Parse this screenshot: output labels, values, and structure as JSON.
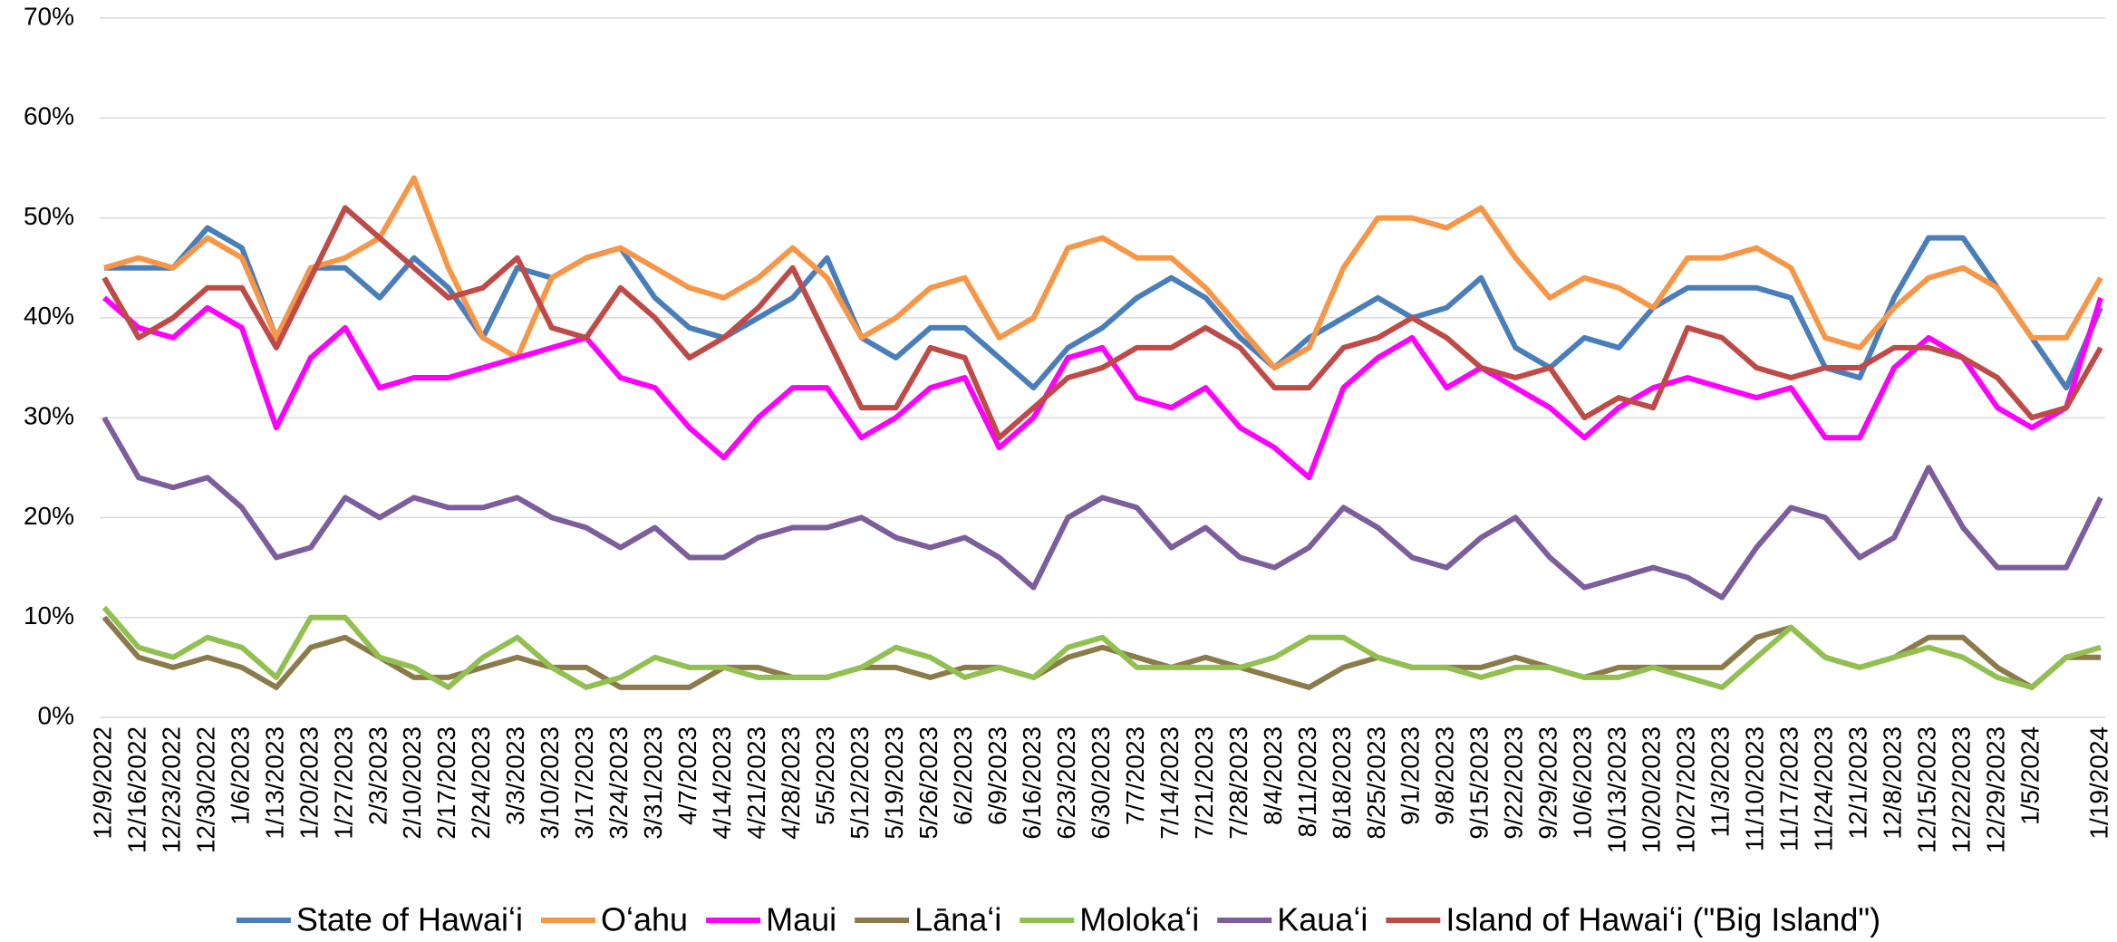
{
  "chart_data": {
    "type": "line",
    "categories": [
      "12/9/2022",
      "12/16/2022",
      "12/23/2022",
      "12/30/2022",
      "1/6/2023",
      "1/13/2023",
      "1/20/2023",
      "1/27/2023",
      "2/3/2023",
      "2/10/2023",
      "2/17/2023",
      "2/24/2023",
      "3/3/2023",
      "3/10/2023",
      "3/17/2023",
      "3/24/2023",
      "3/31/2023",
      "4/7/2023",
      "4/14/2023",
      "4/21/2023",
      "4/28/2023",
      "5/5/2023",
      "5/12/2023",
      "5/19/2023",
      "5/26/2023",
      "6/2/2023",
      "6/9/2023",
      "6/16/2023",
      "6/23/2023",
      "6/30/2023",
      "7/7/2023",
      "7/14/2023",
      "7/21/2023",
      "7/28/2023",
      "8/4/2023",
      "8/11/2023",
      "8/18/2023",
      "8/25/2023",
      "9/1/2023",
      "9/8/2023",
      "9/15/2023",
      "9/22/2023",
      "9/29/2023",
      "10/6/2023",
      "10/13/2023",
      "10/20/2023",
      "10/27/2023",
      "11/3/2023",
      "11/10/2023",
      "11/17/2023",
      "11/24/2023",
      "12/1/2023",
      "12/8/2023",
      "12/15/2023",
      "12/22/2023",
      "12/29/2023",
      "1/5/2024",
      null,
      "1/19/2024"
    ],
    "series": [
      {
        "name": "State of Hawaiʻi",
        "color": "#4a7ebb",
        "values": [
          45,
          45,
          45,
          49,
          47,
          38,
          45,
          45,
          42,
          46,
          43,
          38,
          45,
          44,
          46,
          47,
          42,
          39,
          38,
          40,
          42,
          46,
          38,
          36,
          39,
          39,
          36,
          33,
          37,
          39,
          42,
          44,
          42,
          38,
          35,
          38,
          40,
          42,
          40,
          41,
          44,
          37,
          35,
          38,
          37,
          41,
          43,
          43,
          43,
          42,
          35,
          34,
          42,
          48,
          48,
          43,
          38,
          33,
          41
        ]
      },
      {
        "name": "Oʻahu",
        "color": "#f79646",
        "values": [
          45,
          46,
          45,
          48,
          46,
          38,
          45,
          46,
          48,
          54,
          45,
          38,
          36,
          44,
          46,
          47,
          45,
          43,
          42,
          44,
          47,
          44,
          38,
          40,
          43,
          44,
          38,
          40,
          47,
          48,
          46,
          46,
          43,
          39,
          35,
          37,
          45,
          50,
          50,
          49,
          51,
          46,
          42,
          44,
          43,
          41,
          46,
          46,
          47,
          45,
          38,
          37,
          41,
          44,
          45,
          43,
          38,
          38,
          44
        ]
      },
      {
        "name": "Maui",
        "color": "#ff00ff",
        "values": [
          42,
          39,
          38,
          41,
          39,
          29,
          36,
          39,
          33,
          34,
          34,
          35,
          36,
          37,
          38,
          34,
          33,
          29,
          26,
          30,
          33,
          33,
          28,
          30,
          33,
          34,
          27,
          30,
          36,
          37,
          32,
          31,
          33,
          29,
          27,
          24,
          33,
          36,
          38,
          33,
          35,
          33,
          31,
          28,
          31,
          33,
          34,
          33,
          32,
          33,
          28,
          28,
          35,
          38,
          36,
          31,
          29,
          31,
          42
        ]
      },
      {
        "name": "Lānaʻi",
        "color": "#8c7b4a",
        "values": [
          10,
          6,
          5,
          6,
          5,
          3,
          7,
          8,
          6,
          4,
          4,
          5,
          6,
          5,
          5,
          3,
          3,
          3,
          5,
          5,
          4,
          4,
          5,
          5,
          4,
          5,
          5,
          4,
          6,
          7,
          6,
          5,
          6,
          5,
          4,
          3,
          5,
          6,
          5,
          5,
          5,
          6,
          5,
          4,
          5,
          5,
          5,
          5,
          8,
          9,
          6,
          5,
          6,
          8,
          8,
          5,
          3,
          6,
          6
        ]
      },
      {
        "name": "Molokaʻi",
        "color": "#92c050",
        "values": [
          11,
          7,
          6,
          8,
          7,
          4,
          10,
          10,
          6,
          5,
          3,
          6,
          8,
          5,
          3,
          4,
          6,
          5,
          5,
          4,
          4,
          4,
          5,
          7,
          6,
          4,
          5,
          4,
          7,
          8,
          5,
          5,
          5,
          5,
          6,
          8,
          8,
          6,
          5,
          5,
          4,
          5,
          5,
          4,
          4,
          5,
          4,
          3,
          6,
          9,
          6,
          5,
          6,
          7,
          6,
          4,
          3,
          6,
          7
        ]
      },
      {
        "name": "Kauaʻi",
        "color": "#7d5e9c",
        "values": [
          30,
          24,
          23,
          24,
          21,
          16,
          17,
          22,
          20,
          22,
          21,
          21,
          22,
          20,
          19,
          17,
          19,
          16,
          16,
          18,
          19,
          19,
          20,
          18,
          17,
          18,
          16,
          13,
          20,
          22,
          21,
          17,
          19,
          16,
          15,
          17,
          21,
          19,
          16,
          15,
          18,
          20,
          16,
          13,
          14,
          15,
          14,
          12,
          17,
          21,
          20,
          16,
          18,
          25,
          19,
          15,
          15,
          15,
          22
        ]
      },
      {
        "name": "Island of Hawaiʻi (\"Big Island\")",
        "color": "#be4b48",
        "values": [
          44,
          38,
          40,
          43,
          43,
          37,
          44,
          51,
          48,
          45,
          42,
          43,
          46,
          39,
          38,
          43,
          40,
          36,
          38,
          41,
          45,
          38,
          31,
          31,
          37,
          36,
          28,
          31,
          34,
          35,
          37,
          37,
          39,
          37,
          33,
          33,
          37,
          38,
          40,
          38,
          35,
          34,
          35,
          30,
          32,
          31,
          39,
          38,
          35,
          34,
          35,
          35,
          37,
          37,
          36,
          34,
          30,
          31,
          37
        ]
      }
    ],
    "ylim": [
      0,
      70
    ],
    "yticks": [
      {
        "value": 0,
        "label": "0%"
      },
      {
        "value": 10,
        "label": "10%"
      },
      {
        "value": 20,
        "label": "20%"
      },
      {
        "value": 30,
        "label": "30%"
      },
      {
        "value": 40,
        "label": "40%"
      },
      {
        "value": 50,
        "label": "50%"
      },
      {
        "value": 60,
        "label": "60%"
      },
      {
        "value": 70,
        "label": "70%"
      }
    ],
    "grid": true,
    "legend": "bottom"
  }
}
